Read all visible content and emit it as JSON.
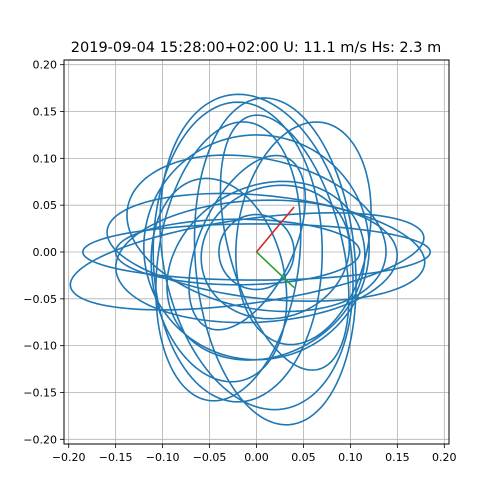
{
  "chart_data": {
    "type": "line",
    "title": "2019-09-04 15:28:00+02:00 U: 11.1 m/s Hs: 2.3 m",
    "xlabel": "",
    "ylabel": "",
    "xlim": [
      -0.205,
      0.205
    ],
    "ylim": [
      -0.205,
      0.205
    ],
    "grid": true,
    "x_ticks": [
      -0.2,
      -0.15,
      -0.1,
      -0.05,
      0.0,
      0.05,
      0.1,
      0.15,
      0.2
    ],
    "x_tick_labels": [
      "−0.20",
      "−0.15",
      "−0.10",
      "−0.05",
      "0.00",
      "0.05",
      "0.10",
      "0.15",
      "0.20"
    ],
    "y_ticks": [
      0.2,
      0.15,
      0.1,
      0.05,
      0.0,
      -0.05,
      -0.1,
      -0.15,
      -0.2
    ],
    "y_tick_labels": [
      "0.20",
      "0.15",
      "0.10",
      "0.05",
      "0.00",
      "−0.05",
      "−0.10",
      "−0.15",
      "−0.20"
    ],
    "orbit_color": "#1f77b4",
    "orbits": [
      {
        "cx": 0.0,
        "cy": 0.0,
        "rx": 0.185,
        "ry": 0.03,
        "rot": 0
      },
      {
        "cx": -0.01,
        "cy": -0.01,
        "rx": 0.19,
        "ry": 0.045,
        "rot": 8
      },
      {
        "cx": 0.01,
        "cy": 0.005,
        "rx": 0.17,
        "ry": 0.055,
        "rot": -6
      },
      {
        "cx": 0.0,
        "cy": -0.01,
        "rx": 0.15,
        "ry": 0.065,
        "rot": 3
      },
      {
        "cx": -0.02,
        "cy": 0.0,
        "rx": 0.13,
        "ry": 0.035,
        "rot": 0
      },
      {
        "cx": 0.0,
        "cy": 0.0,
        "rx": 0.1,
        "ry": 0.17,
        "rot": 10
      },
      {
        "cx": 0.02,
        "cy": -0.01,
        "rx": 0.085,
        "ry": 0.175,
        "rot": 5
      },
      {
        "cx": -0.03,
        "cy": -0.01,
        "rx": 0.075,
        "ry": 0.15,
        "rot": -8
      },
      {
        "cx": 0.03,
        "cy": 0.01,
        "rx": 0.06,
        "ry": 0.14,
        "rot": 15
      },
      {
        "cx": 0.0,
        "cy": 0.005,
        "rx": 0.12,
        "ry": 0.12,
        "rot": 0
      },
      {
        "cx": 0.02,
        "cy": 0.0,
        "rx": 0.08,
        "ry": 0.07,
        "rot": 20
      },
      {
        "cx": -0.01,
        "cy": 0.01,
        "rx": 0.05,
        "ry": 0.1,
        "rot": -25
      },
      {
        "cx": 0.01,
        "cy": -0.02,
        "rx": 0.11,
        "ry": 0.09,
        "rot": 30
      },
      {
        "cx": 0.0,
        "cy": 0.0,
        "rx": 0.04,
        "ry": 0.04,
        "rot": 0
      },
      {
        "cx": -0.04,
        "cy": -0.03,
        "rx": 0.07,
        "ry": 0.11,
        "rot": 12
      },
      {
        "cx": 0.05,
        "cy": 0.02,
        "rx": 0.07,
        "ry": 0.12,
        "rot": -10
      },
      {
        "cx": 0.0,
        "cy": 0.02,
        "rx": 0.14,
        "ry": 0.08,
        "rot": -12
      },
      {
        "cx": -0.02,
        "cy": 0.0,
        "rx": 0.09,
        "ry": 0.16,
        "rot": 0
      }
    ],
    "arrows": [
      {
        "color": "#d62728",
        "x0": 0.0,
        "y0": 0.0,
        "x1": 0.04,
        "y1": 0.048
      },
      {
        "color": "#2ca02c",
        "x0": 0.0,
        "y0": 0.0,
        "x1": 0.04,
        "y1": -0.038
      }
    ]
  }
}
